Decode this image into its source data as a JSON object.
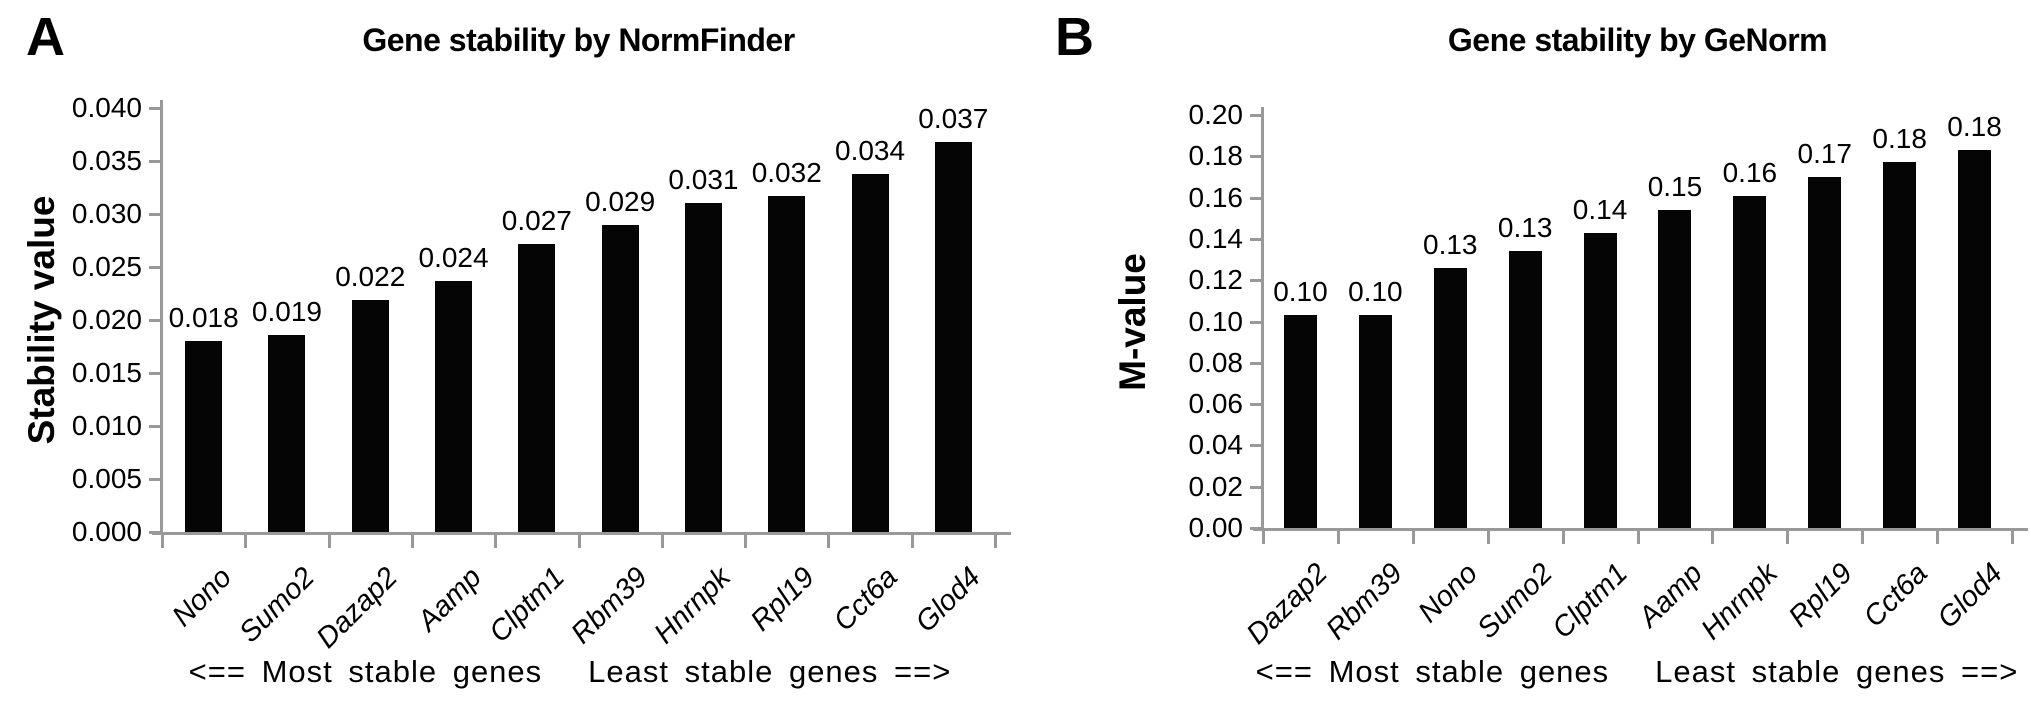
{
  "chart_data": [
    {
      "panel_letter": "A",
      "type": "bar",
      "title": "Gene stability by NormFinder",
      "ylabel": "Stability value",
      "xlabel": "",
      "ylim": [
        0,
        0.04
      ],
      "ystep": 0.005,
      "y_decimals": 3,
      "grid": false,
      "legend": "none",
      "bar_color": "#050505",
      "axis_color": "#999999",
      "categories": [
        "Nono",
        "Sumo2",
        "Dazap2",
        "Aamp",
        "Clptm1",
        "Rbm39",
        "Hnrnpk",
        "Rpl19",
        "Cct6a",
        "Glod4"
      ],
      "values": [
        0.018,
        0.0186,
        0.0219,
        0.0237,
        0.0272,
        0.029,
        0.031,
        0.0317,
        0.0338,
        0.0368
      ],
      "data_labels": [
        "0.018",
        "0.019",
        "0.022",
        "0.024",
        "0.027",
        "0.029",
        "0.031",
        "0.032",
        "0.034",
        "0.037"
      ],
      "footnote_left": "<== Most stable genes",
      "footnote_right": "Least stable genes ==>"
    },
    {
      "panel_letter": "B",
      "type": "bar",
      "title": "Gene stability by GeNorm",
      "ylabel": "M-value",
      "xlabel": "",
      "ylim": [
        0,
        0.2
      ],
      "ystep": 0.02,
      "y_decimals": 2,
      "grid": false,
      "legend": "none",
      "bar_color": "#050505",
      "axis_color": "#999999",
      "categories": [
        "Dazap2",
        "Rbm39",
        "Nono",
        "Sumo2",
        "Clptm1",
        "Aamp",
        "Hnrnpk",
        "Rpl19",
        "Cct6a",
        "Glod4"
      ],
      "values": [
        0.103,
        0.103,
        0.126,
        0.134,
        0.143,
        0.154,
        0.161,
        0.17,
        0.177,
        0.183
      ],
      "data_labels": [
        "0.10",
        "0.10",
        "0.13",
        "0.13",
        "0.14",
        "0.15",
        "0.16",
        "0.17",
        "0.18",
        "0.18"
      ],
      "footnote_left": "<== Most stable genes",
      "footnote_right": "Least stable genes ==>"
    }
  ]
}
